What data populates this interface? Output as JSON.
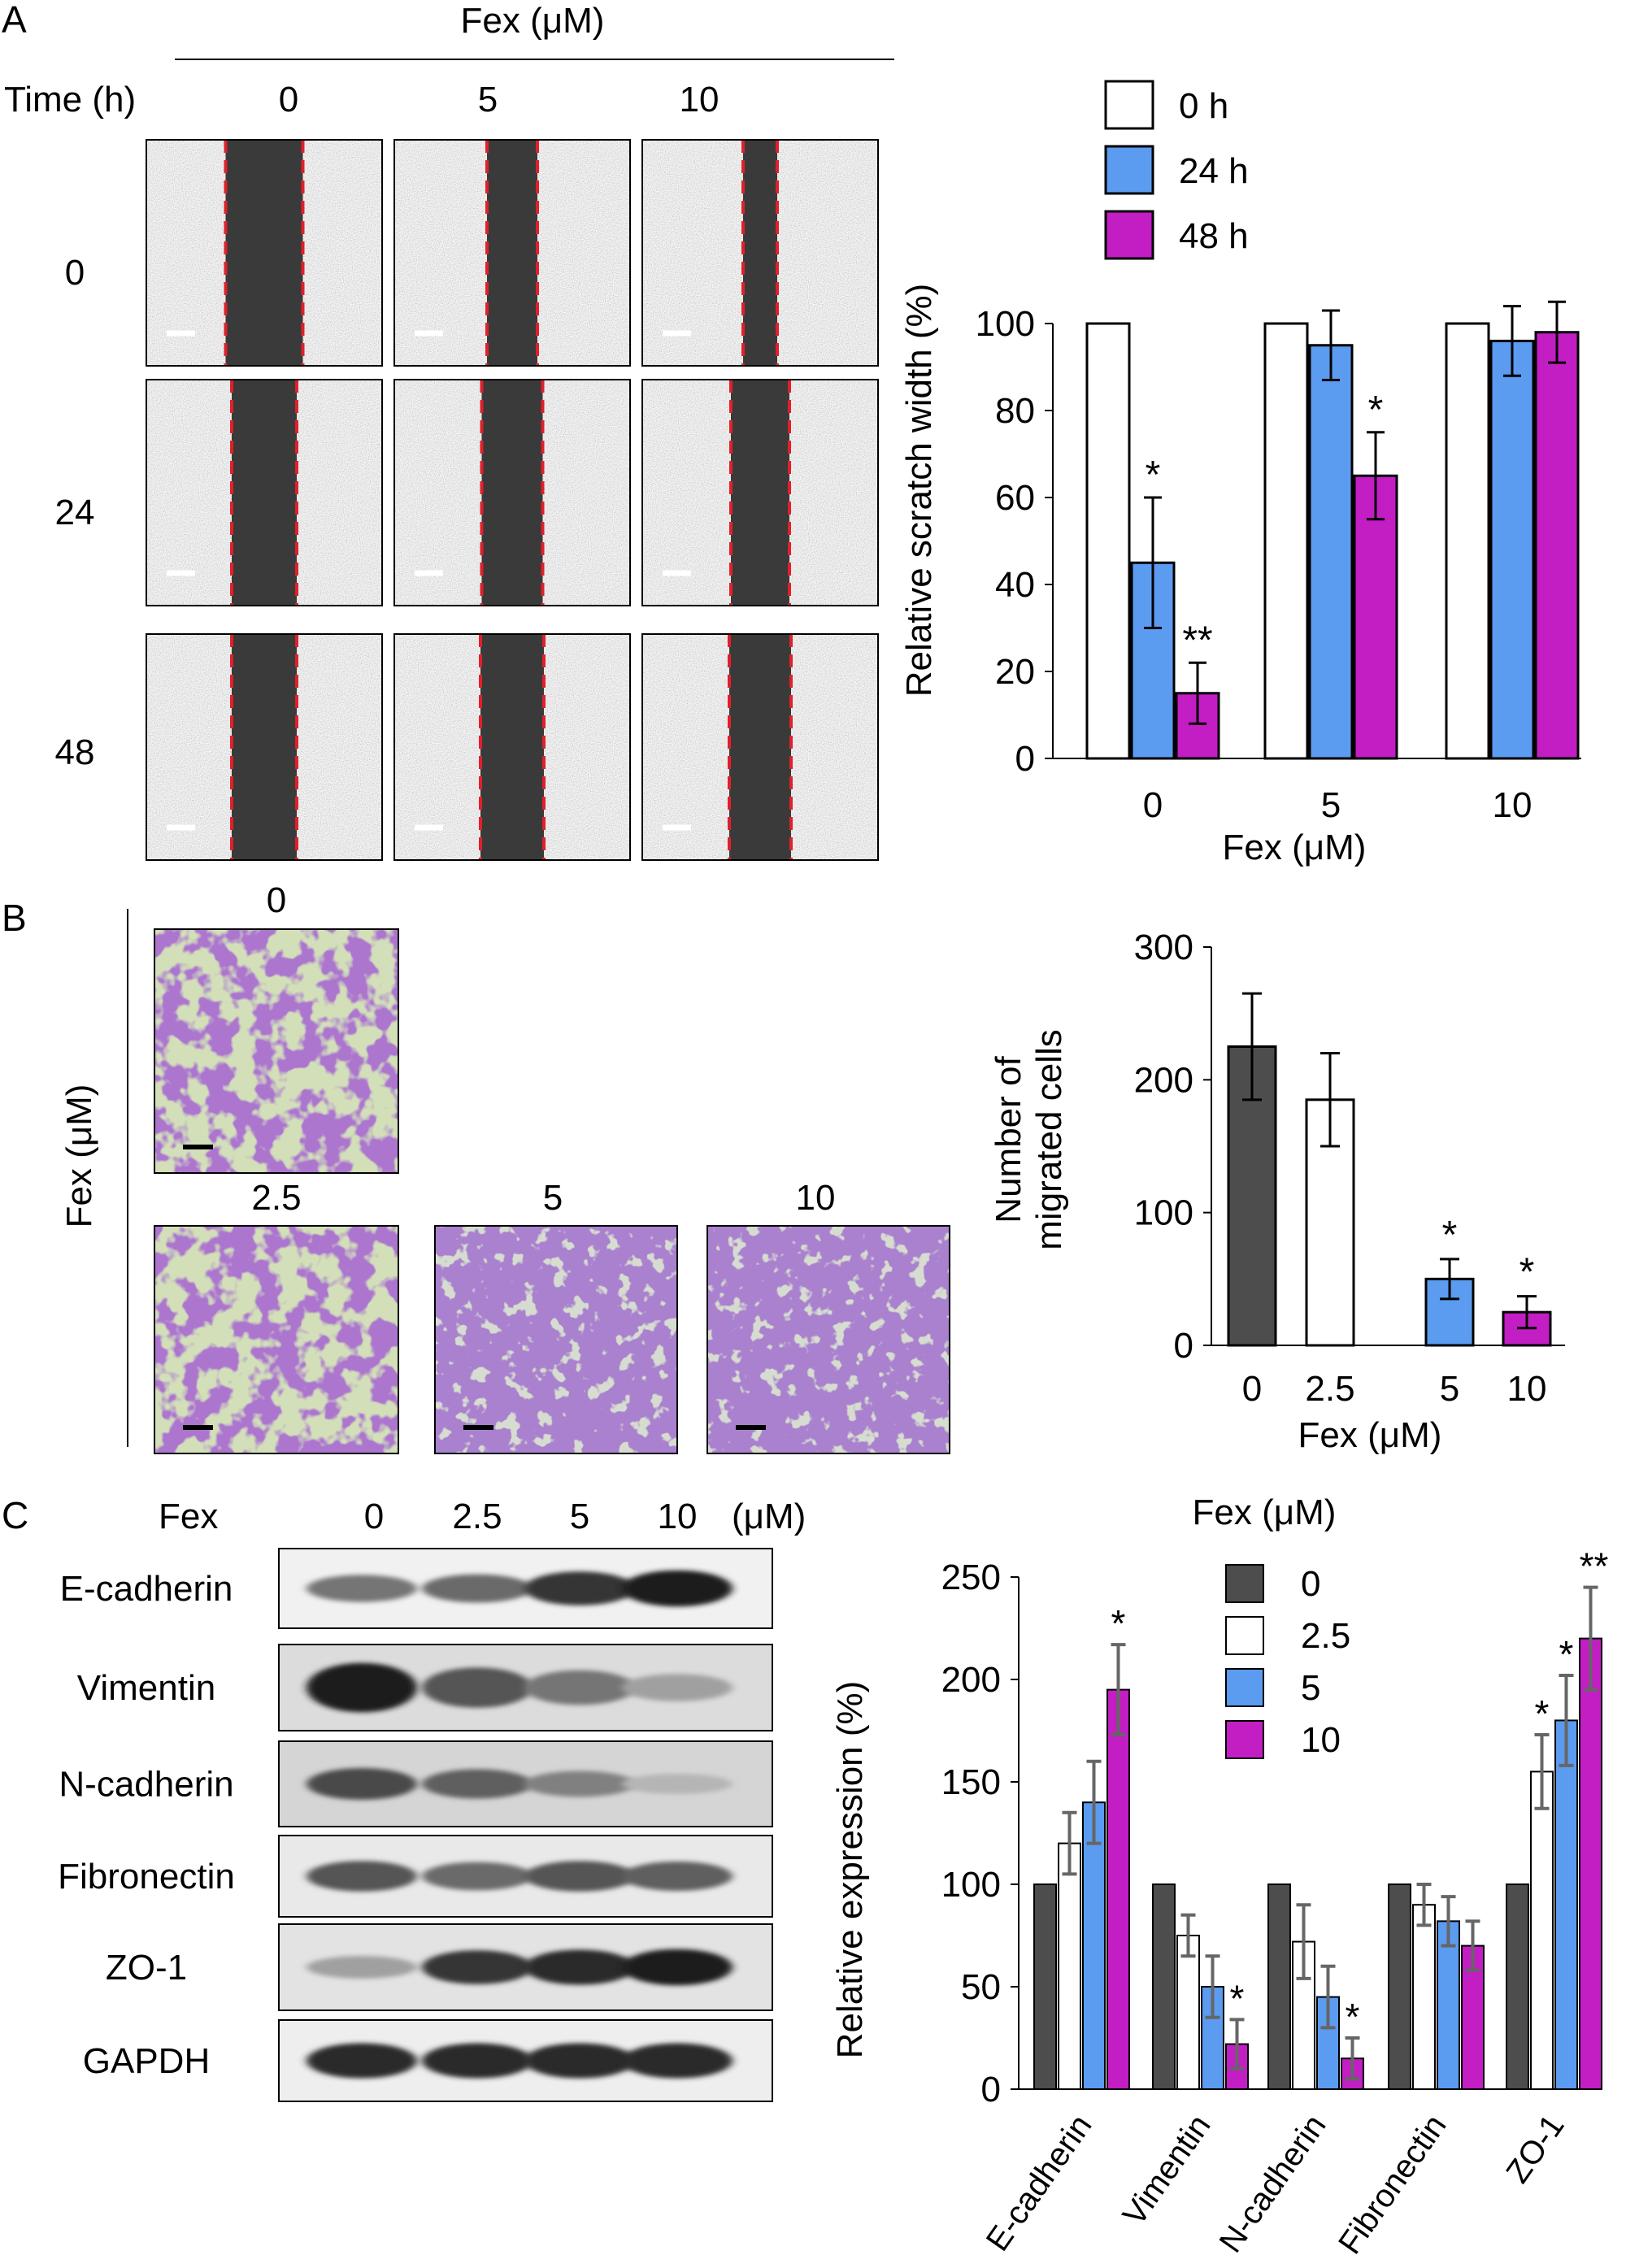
{
  "panel_a": {
    "letter": "A",
    "fex_header": "Fex (μM)",
    "time_header": "Time (h)",
    "col_labels": [
      "0",
      "5",
      "10"
    ],
    "row_labels": [
      "0",
      "24",
      "48"
    ]
  },
  "panel_b": {
    "letter": "B",
    "side_label": "Fex (μM)",
    "image_labels": [
      "0",
      "2.5",
      "5",
      "10"
    ]
  },
  "panel_c": {
    "letter": "C",
    "header_fex": "Fex",
    "header_doses": [
      "0",
      "2.5",
      "5",
      "10"
    ],
    "header_unit": "(μM)",
    "protein_labels": [
      "E-cadherin",
      "Vimentin",
      "N-cadherin",
      "Fibronectin",
      "ZO-1",
      "GAPDH"
    ]
  },
  "colors": {
    "white": "#ffffff",
    "blue": "#5b9bf0",
    "magenta": "#c21ec4",
    "gray": "#4d4d4d",
    "scratch_line": "#e0202a",
    "crystal_violet": "#6a2f9e"
  },
  "chart_data": [
    {
      "id": "scratch",
      "type": "bar",
      "categories": [
        "0",
        "5",
        "10"
      ],
      "xlabel": "Fex (μM)",
      "ylabel": "Relative scratch width (%)",
      "ylim": [
        0,
        100
      ],
      "yticks": [
        0,
        20,
        40,
        60,
        80,
        100
      ],
      "legend_position": "top",
      "series": [
        {
          "name": "0 h",
          "color": "#ffffff",
          "values": [
            100,
            100,
            100
          ],
          "errors": [
            0,
            0,
            0
          ],
          "sig": [
            "",
            "",
            ""
          ]
        },
        {
          "name": "24 h",
          "color": "#5b9bf0",
          "values": [
            45,
            95,
            96
          ],
          "errors": [
            15,
            8,
            8
          ],
          "sig": [
            "*",
            "",
            ""
          ]
        },
        {
          "name": "48 h",
          "color": "#c21ec4",
          "values": [
            15,
            65,
            98
          ],
          "errors": [
            7,
            10,
            7
          ],
          "sig": [
            "**",
            "*",
            ""
          ]
        }
      ]
    },
    {
      "id": "migration",
      "type": "bar",
      "categories": [
        "0",
        "2.5",
        "5",
        "10"
      ],
      "xlabel": "Fex (μM)",
      "ylabel_lines": [
        "Number of",
        "migrated cells"
      ],
      "ylim": [
        0,
        300
      ],
      "yticks": [
        0,
        100,
        200,
        300
      ],
      "colors": [
        "#4d4d4d",
        "#ffffff",
        "#5b9bf0",
        "#c21ec4"
      ],
      "values": [
        225,
        185,
        50,
        25
      ],
      "errors": [
        40,
        35,
        15,
        12
      ],
      "sig": [
        "",
        "",
        "*",
        "*"
      ]
    },
    {
      "id": "expression",
      "type": "bar",
      "categories": [
        "E-cadherin",
        "Vimentin",
        "N-cadherin",
        "Fibronectin",
        "ZO-1"
      ],
      "ylabel": "Relative expression (%)",
      "ylim": [
        0,
        250
      ],
      "yticks": [
        0,
        50,
        100,
        150,
        200,
        250
      ],
      "legend_title": "Fex (μM)",
      "legend_position": "top-right",
      "series": [
        {
          "name": "0",
          "color": "#4d4d4d",
          "values": [
            100,
            100,
            100,
            100,
            100
          ],
          "errors": [
            0,
            0,
            0,
            0,
            0
          ],
          "sig": [
            "",
            "",
            "",
            "",
            ""
          ]
        },
        {
          "name": "2.5",
          "color": "#ffffff",
          "values": [
            120,
            75,
            72,
            90,
            155
          ],
          "errors": [
            15,
            10,
            18,
            10,
            18
          ],
          "sig": [
            "",
            "",
            "",
            "",
            "*"
          ]
        },
        {
          "name": "5",
          "color": "#5b9bf0",
          "values": [
            140,
            50,
            45,
            82,
            180
          ],
          "errors": [
            20,
            15,
            15,
            12,
            22
          ],
          "sig": [
            "",
            "",
            "",
            "",
            "*"
          ]
        },
        {
          "name": "10",
          "color": "#c21ec4",
          "values": [
            195,
            22,
            15,
            70,
            220
          ],
          "errors": [
            22,
            12,
            10,
            12,
            25
          ],
          "sig": [
            "*",
            "*",
            "*",
            "",
            "**"
          ]
        }
      ]
    }
  ]
}
